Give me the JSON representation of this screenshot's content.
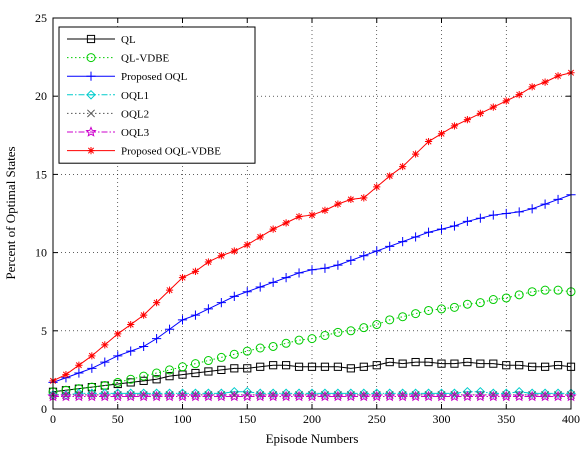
{
  "chart_data": {
    "type": "line",
    "xlabel": "Episode Numbers",
    "ylabel": "Percent of Optimal States",
    "xlim": [
      0,
      400
    ],
    "ylim": [
      0,
      25
    ],
    "xticks": [
      "0",
      "50",
      "100",
      "150",
      "200",
      "250",
      "300",
      "350",
      "400"
    ],
    "yticks": [
      "0",
      "5",
      "10",
      "15",
      "20",
      "25"
    ],
    "grid": true,
    "legend_position": "top-left",
    "x": [
      0,
      10,
      20,
      30,
      40,
      50,
      60,
      70,
      80,
      90,
      100,
      110,
      120,
      130,
      140,
      150,
      160,
      170,
      180,
      190,
      200,
      210,
      220,
      230,
      240,
      250,
      260,
      270,
      280,
      290,
      300,
      310,
      320,
      330,
      340,
      350,
      360,
      370,
      380,
      390,
      400
    ],
    "series": [
      {
        "name": "QL",
        "color": "#000000",
        "marker": "square",
        "line": "solid",
        "values": [
          1.1,
          1.2,
          1.3,
          1.4,
          1.5,
          1.6,
          1.7,
          1.8,
          1.9,
          2.1,
          2.2,
          2.3,
          2.4,
          2.5,
          2.6,
          2.6,
          2.7,
          2.8,
          2.8,
          2.7,
          2.7,
          2.7,
          2.7,
          2.6,
          2.7,
          2.8,
          3.0,
          2.9,
          3.0,
          3.0,
          2.9,
          2.9,
          3.0,
          2.9,
          2.9,
          2.8,
          2.8,
          2.7,
          2.7,
          2.8,
          2.7
        ]
      },
      {
        "name": "QL-VDBE",
        "color": "#00cc00",
        "marker": "circle",
        "line": "dotted",
        "values": [
          1.1,
          1.2,
          1.3,
          1.4,
          1.5,
          1.7,
          1.9,
          2.1,
          2.3,
          2.5,
          2.7,
          2.9,
          3.1,
          3.3,
          3.5,
          3.7,
          3.9,
          4.0,
          4.2,
          4.4,
          4.5,
          4.7,
          4.9,
          5.0,
          5.2,
          5.4,
          5.7,
          5.9,
          6.1,
          6.3,
          6.4,
          6.5,
          6.7,
          6.8,
          7.0,
          7.1,
          7.3,
          7.5,
          7.6,
          7.6,
          7.5
        ]
      },
      {
        "name": "Proposed OQL",
        "color": "#0000ff",
        "marker": "plus",
        "line": "solid",
        "values": [
          1.7,
          2.0,
          2.3,
          2.6,
          3.0,
          3.4,
          3.7,
          4.0,
          4.5,
          5.1,
          5.7,
          6.0,
          6.4,
          6.8,
          7.2,
          7.5,
          7.8,
          8.1,
          8.4,
          8.7,
          8.9,
          9.0,
          9.2,
          9.5,
          9.8,
          10.1,
          10.4,
          10.7,
          11.0,
          11.3,
          11.5,
          11.7,
          12.0,
          12.2,
          12.4,
          12.5,
          12.6,
          12.8,
          13.1,
          13.4,
          13.7
        ]
      },
      {
        "name": "OQL1",
        "color": "#00cccc",
        "marker": "diamond",
        "line": "dashdot",
        "values": [
          0.9,
          0.9,
          1.0,
          1.0,
          1.0,
          1.0,
          1.0,
          1.0,
          1.0,
          1.0,
          1.0,
          1.0,
          1.0,
          1.0,
          1.1,
          1.1,
          1.0,
          1.0,
          1.0,
          1.0,
          1.0,
          1.0,
          1.0,
          1.0,
          1.0,
          1.0,
          1.0,
          1.0,
          1.0,
          1.0,
          1.0,
          1.0,
          1.1,
          1.1,
          1.0,
          1.0,
          1.1,
          1.0,
          1.0,
          1.0,
          1.0
        ]
      },
      {
        "name": "OQL2",
        "color": "#555555",
        "marker": "x",
        "line": "dotted",
        "values": [
          0.9,
          0.9,
          0.9,
          0.9,
          0.9,
          0.9,
          0.9,
          0.9,
          0.9,
          0.9,
          0.9,
          0.9,
          0.9,
          0.9,
          0.9,
          0.9,
          0.9,
          0.9,
          0.9,
          0.9,
          0.9,
          0.9,
          0.9,
          0.9,
          0.9,
          0.9,
          0.9,
          0.9,
          0.9,
          0.9,
          0.9,
          0.9,
          0.9,
          0.9,
          0.9,
          0.9,
          0.9,
          0.9,
          0.9,
          0.9,
          0.9
        ]
      },
      {
        "name": "OQL3",
        "color": "#cc00cc",
        "marker": "star",
        "line": "dashdot",
        "values": [
          0.8,
          0.8,
          0.8,
          0.8,
          0.8,
          0.8,
          0.8,
          0.8,
          0.8,
          0.8,
          0.8,
          0.8,
          0.8,
          0.8,
          0.8,
          0.8,
          0.8,
          0.8,
          0.8,
          0.8,
          0.8,
          0.8,
          0.8,
          0.8,
          0.8,
          0.8,
          0.8,
          0.8,
          0.8,
          0.8,
          0.8,
          0.8,
          0.8,
          0.8,
          0.8,
          0.8,
          0.8,
          0.8,
          0.8,
          0.8,
          0.8
        ]
      },
      {
        "name": "Proposed OQL-VDBE",
        "color": "#ff0000",
        "marker": "asterisk",
        "line": "solid",
        "values": [
          1.8,
          2.2,
          2.8,
          3.4,
          4.1,
          4.8,
          5.4,
          6.0,
          6.8,
          7.6,
          8.4,
          8.8,
          9.4,
          9.8,
          10.1,
          10.5,
          11.0,
          11.5,
          11.9,
          12.3,
          12.4,
          12.7,
          13.1,
          13.4,
          13.5,
          14.2,
          14.9,
          15.5,
          16.3,
          17.1,
          17.6,
          18.1,
          18.5,
          18.9,
          19.3,
          19.7,
          20.1,
          20.6,
          20.9,
          21.3,
          21.5
        ]
      }
    ]
  }
}
